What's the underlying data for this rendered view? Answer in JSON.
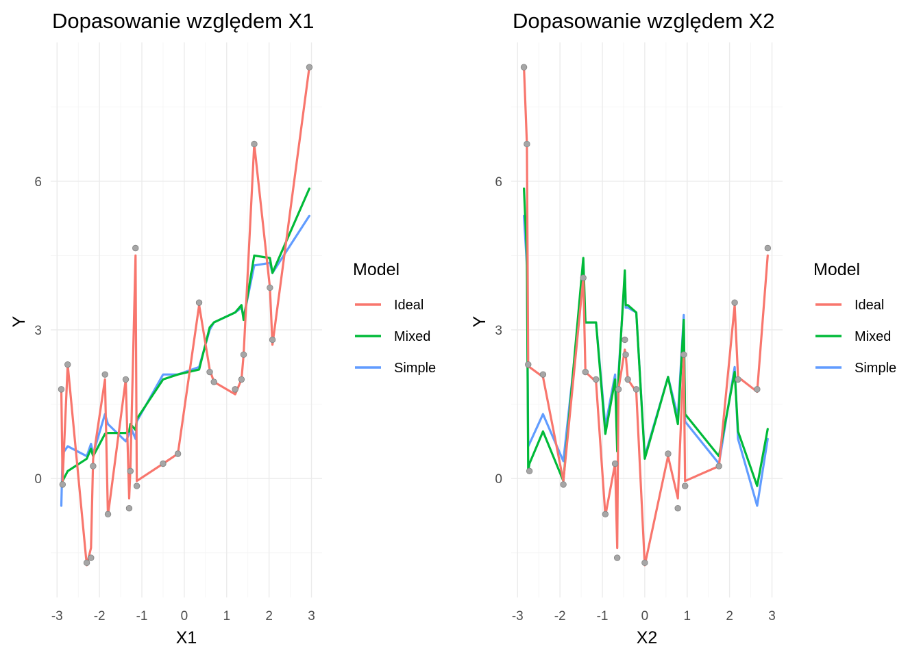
{
  "chart_data": [
    {
      "type": "line",
      "title": "Dopasowanie względem X1",
      "xlabel": "X1",
      "ylabel": "Y",
      "xlim": [
        -3.15,
        3.25
      ],
      "ylim": [
        -2.4,
        8.8
      ],
      "x_ticks": [
        -3,
        -2,
        -1,
        0,
        1,
        2,
        3
      ],
      "x_tick_labels": [
        "-3",
        "-2",
        "-1",
        "0",
        "1",
        "2",
        "3"
      ],
      "y_ticks": [
        0,
        3,
        6
      ],
      "y_tick_labels": [
        "0",
        "3",
        "6"
      ],
      "x": [
        -2.9,
        -2.87,
        -2.75,
        -2.3,
        -2.2,
        -2.15,
        -1.87,
        -1.8,
        -1.38,
        -1.3,
        -1.27,
        -1.15,
        -1.12,
        -0.5,
        -0.15,
        0.35,
        0.6,
        0.7,
        1.2,
        1.35,
        1.4,
        1.65,
        2.02,
        2.08,
        2.95
      ],
      "points": [
        1.8,
        -0.12,
        2.3,
        -1.7,
        -1.6,
        0.25,
        2.1,
        -0.72,
        2.0,
        -0.6,
        0.15,
        4.65,
        -0.15,
        0.3,
        0.5,
        3.55,
        2.15,
        1.95,
        1.8,
        2.0,
        2.5,
        6.75,
        3.85,
        2.8,
        8.3
      ],
      "series": [
        {
          "name": "Ideal",
          "color": "#F8766D",
          "values": [
            1.78,
            -0.05,
            2.3,
            -1.75,
            -1.4,
            0.4,
            2.0,
            -0.75,
            2.0,
            -0.4,
            0.2,
            4.5,
            -0.05,
            0.3,
            0.5,
            3.5,
            2.2,
            1.95,
            1.7,
            2.0,
            2.5,
            6.75,
            3.85,
            2.7,
            8.3
          ]
        },
        {
          "name": "Mixed",
          "color": "#00BA38",
          "values": [
            -0.1,
            -0.05,
            0.15,
            0.4,
            0.6,
            0.45,
            0.9,
            0.92,
            0.92,
            0.95,
            1.1,
            0.98,
            1.2,
            2.0,
            2.1,
            2.2,
            3.05,
            3.15,
            3.35,
            3.5,
            3.2,
            4.5,
            4.45,
            4.15,
            5.85
          ]
        },
        {
          "name": "Simple",
          "color": "#619CFF",
          "values": [
            -0.55,
            0.5,
            0.65,
            0.45,
            0.7,
            0.5,
            1.3,
            1.1,
            0.75,
            0.9,
            1.05,
            0.8,
            1.15,
            2.1,
            2.1,
            2.25,
            3.0,
            3.15,
            3.35,
            3.45,
            3.25,
            4.3,
            4.35,
            4.15,
            5.3
          ]
        }
      ]
    },
    {
      "type": "line",
      "title": "Dopasowanie względem X2",
      "xlabel": "X2",
      "ylabel": "Y",
      "xlim": [
        -3.15,
        3.25
      ],
      "ylim": [
        -2.4,
        8.8
      ],
      "x_ticks": [
        -3,
        -2,
        -1,
        0,
        1,
        2,
        3
      ],
      "x_tick_labels": [
        "-3",
        "-2",
        "-1",
        "0",
        "1",
        "2",
        "3"
      ],
      "y_ticks": [
        0,
        3,
        6
      ],
      "y_tick_labels": [
        "0",
        "3",
        "6"
      ],
      "x": [
        -2.85,
        -2.78,
        -2.75,
        -2.72,
        -2.4,
        -1.92,
        -1.45,
        -1.4,
        -1.15,
        -0.93,
        -0.7,
        -0.65,
        -0.62,
        -0.47,
        -0.45,
        -0.4,
        -0.2,
        0,
        0.55,
        0.78,
        0.92,
        0.95,
        1.75,
        2.12,
        2.2,
        2.65,
        2.9
      ],
      "points": [
        8.3,
        6.75,
        2.3,
        0.15,
        2.1,
        -0.12,
        4.05,
        2.15,
        2.0,
        -0.72,
        0.3,
        -1.6,
        1.8,
        2.8,
        2.5,
        2.0,
        1.8,
        -1.7,
        0.5,
        -0.6,
        2.5,
        -0.15,
        0.25,
        3.55,
        2.0,
        1.8,
        4.65
      ],
      "series": [
        {
          "name": "Ideal",
          "color": "#F8766D",
          "values": [
            8.3,
            6.75,
            2.25,
            2.25,
            2.05,
            -0.05,
            4.05,
            2.15,
            1.95,
            -0.75,
            0.3,
            -1.4,
            1.8,
            2.6,
            2.5,
            2.0,
            1.75,
            -1.75,
            0.45,
            -0.4,
            2.5,
            -0.05,
            0.25,
            3.5,
            2.05,
            1.75,
            4.5
          ]
        },
        {
          "name": "Mixed",
          "color": "#00BA38",
          "values": [
            5.85,
            4.5,
            0.15,
            0.3,
            0.95,
            -0.05,
            4.45,
            3.15,
            3.15,
            0.9,
            2.0,
            0.55,
            2.0,
            4.2,
            3.5,
            3.5,
            3.35,
            0.4,
            2.05,
            1.1,
            3.2,
            1.3,
            0.45,
            2.15,
            0.95,
            -0.15,
            1.0
          ]
        },
        {
          "name": "Simple",
          "color": "#619CFF",
          "values": [
            5.3,
            4.3,
            0.65,
            0.7,
            1.3,
            0.35,
            4.05,
            3.15,
            3.15,
            1.05,
            2.1,
            0.75,
            2.1,
            4.1,
            3.45,
            3.45,
            3.35,
            0.45,
            2.05,
            1.25,
            3.3,
            1.15,
            0.3,
            2.25,
            0.8,
            -0.55,
            0.8
          ]
        }
      ]
    }
  ],
  "legend": {
    "title": "Model",
    "items": [
      {
        "label": "Ideal",
        "color": "#F8766D"
      },
      {
        "label": "Mixed",
        "color": "#00BA38"
      },
      {
        "label": "Simple",
        "color": "#619CFF"
      }
    ]
  }
}
